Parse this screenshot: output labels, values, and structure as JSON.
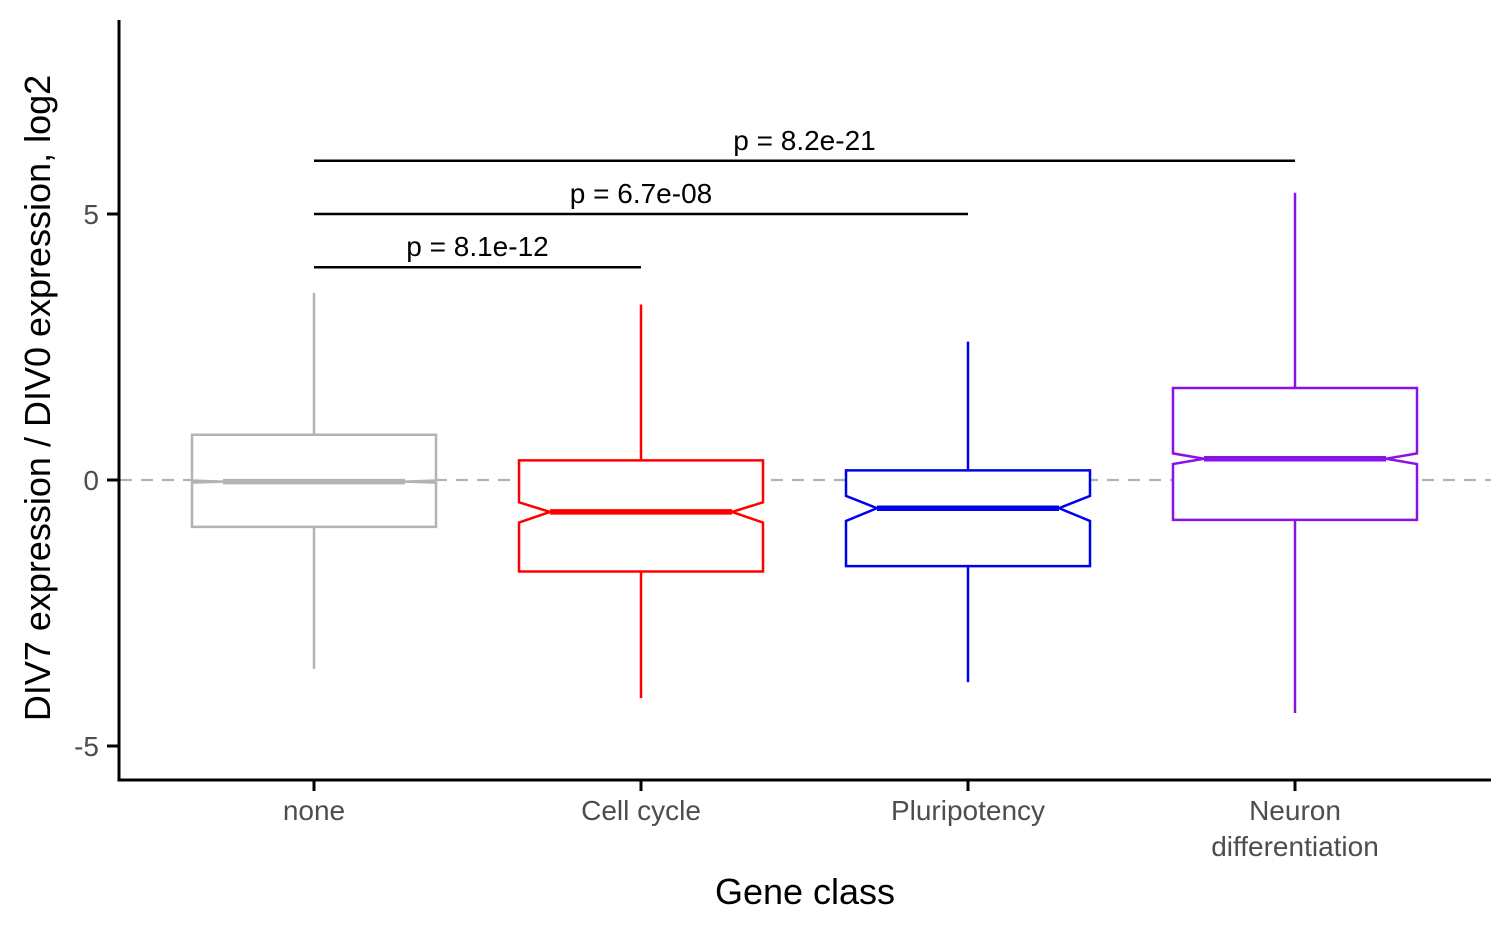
{
  "chart_data": {
    "type": "boxplot",
    "notched": true,
    "xlabel": "Gene class",
    "ylabel": "DIV7 expression / DIV0 expression, log2",
    "ylim": [
      -5.6,
      8.6
    ],
    "yticks": [
      -5,
      0,
      5
    ],
    "ytick_labels": [
      "-5",
      "0",
      "5"
    ],
    "grid": false,
    "reference_line": {
      "y": 0,
      "style": "dashed",
      "color": "#b3b3b3"
    },
    "categories": [
      {
        "label_lines": [
          "none"
        ],
        "color": "#b3b3b3",
        "lower_whisker": -3.55,
        "q1": -0.88,
        "median": -0.03,
        "q3": 0.85,
        "upper_whisker": 3.52,
        "notch_low": -0.05,
        "notch_high": -0.01
      },
      {
        "label_lines": [
          "Cell cycle"
        ],
        "color": "#ff0000",
        "lower_whisker": -4.1,
        "q1": -1.72,
        "median": -0.6,
        "q3": 0.37,
        "upper_whisker": 3.3,
        "notch_low": -0.8,
        "notch_high": -0.42
      },
      {
        "label_lines": [
          "Pluripotency"
        ],
        "color": "#0000ee",
        "lower_whisker": -3.8,
        "q1": -1.62,
        "median": -0.53,
        "q3": 0.18,
        "upper_whisker": 2.6,
        "notch_low": -0.77,
        "notch_high": -0.3
      },
      {
        "label_lines": [
          "Neuron",
          "differentiation"
        ],
        "color": "#8b12e6",
        "lower_whisker": -4.38,
        "q1": -0.75,
        "median": 0.4,
        "q3": 1.73,
        "upper_whisker": 5.4,
        "notch_low": 0.3,
        "notch_high": 0.5
      }
    ],
    "comparisons": [
      {
        "from": 0,
        "to": 1,
        "y": 4.0,
        "label": "p = 8.1e-12"
      },
      {
        "from": 0,
        "to": 2,
        "y": 5.0,
        "label": "p = 6.7e-08"
      },
      {
        "from": 0,
        "to": 3,
        "y": 6.0,
        "label": "p = 8.2e-21"
      }
    ]
  }
}
